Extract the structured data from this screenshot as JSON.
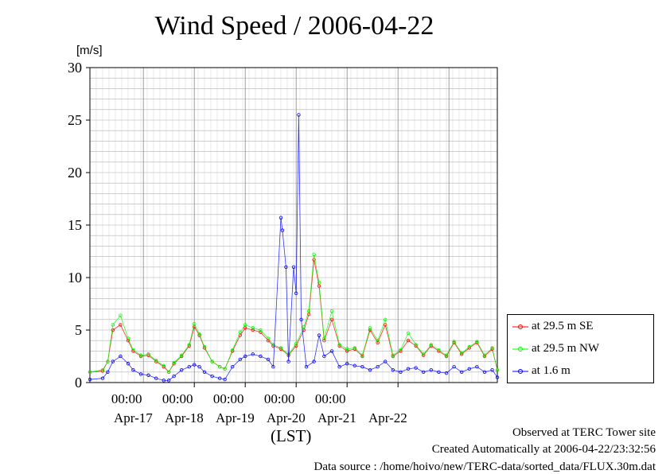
{
  "chart_data": {
    "type": "line",
    "title": "Wind Speed / 2006-04-22",
    "ylabel": "[m/s]",
    "xlabel": "(LST)",
    "ylim": [
      0,
      30
    ],
    "yticks": [
      0,
      5,
      10,
      15,
      20,
      25,
      30
    ],
    "xlim_days": [
      "2006-04-16 12:00",
      "2006-04-22 12:00"
    ],
    "time_tick_labels": [
      "00:00",
      "00:00",
      "00:00",
      "00:00",
      "00:00"
    ],
    "date_labels": [
      "Apr-17",
      "Apr-18",
      "Apr-19",
      "Apr-20",
      "Apr-21",
      "Apr-22"
    ],
    "grid": true,
    "legend_position": "right",
    "series": [
      {
        "name": "at 29.5 m SE",
        "color": "#ff0000",
        "points": [
          [
            0.0,
            1.0
          ],
          [
            0.25,
            1.1
          ],
          [
            0.35,
            2.0
          ],
          [
            0.45,
            5.0
          ],
          [
            0.6,
            5.5
          ],
          [
            0.75,
            4.0
          ],
          [
            0.85,
            3.0
          ],
          [
            1.0,
            2.5
          ],
          [
            1.15,
            2.6
          ],
          [
            1.3,
            2.0
          ],
          [
            1.45,
            1.5
          ],
          [
            1.55,
            1.0
          ],
          [
            1.65,
            1.8
          ],
          [
            1.8,
            2.5
          ],
          [
            1.95,
            3.5
          ],
          [
            2.05,
            5.3
          ],
          [
            2.15,
            4.5
          ],
          [
            2.25,
            3.3
          ],
          [
            2.4,
            2.0
          ],
          [
            2.55,
            1.5
          ],
          [
            2.65,
            1.3
          ],
          [
            2.8,
            3.0
          ],
          [
            2.95,
            4.5
          ],
          [
            3.05,
            5.2
          ],
          [
            3.2,
            5.0
          ],
          [
            3.35,
            4.8
          ],
          [
            3.5,
            4.0
          ],
          [
            3.6,
            3.5
          ],
          [
            3.75,
            3.2
          ],
          [
            3.9,
            2.6
          ],
          [
            4.05,
            3.5
          ],
          [
            4.2,
            5.0
          ],
          [
            4.3,
            6.5
          ],
          [
            4.4,
            11.7
          ],
          [
            4.5,
            9.2
          ],
          [
            4.6,
            4.0
          ],
          [
            4.75,
            6.0
          ],
          [
            4.9,
            3.5
          ],
          [
            5.05,
            3.0
          ],
          [
            5.2,
            3.2
          ],
          [
            5.35,
            2.5
          ],
          [
            5.5,
            5.0
          ],
          [
            5.65,
            3.8
          ],
          [
            5.8,
            5.5
          ],
          [
            5.95,
            2.5
          ],
          [
            6.1,
            3.0
          ],
          [
            6.25,
            4.0
          ],
          [
            6.4,
            3.5
          ],
          [
            6.55,
            2.6
          ],
          [
            6.7,
            3.5
          ],
          [
            6.85,
            3.0
          ],
          [
            7.0,
            2.5
          ],
          [
            7.15,
            3.8
          ],
          [
            7.3,
            2.7
          ],
          [
            7.45,
            3.3
          ],
          [
            7.6,
            3.8
          ],
          [
            7.75,
            2.5
          ],
          [
            7.9,
            3.2
          ],
          [
            8.0,
            1.2
          ]
        ]
      },
      {
        "name": "at 29.5 m NW",
        "color": "#00ff00",
        "points": [
          [
            0.0,
            1.0
          ],
          [
            0.25,
            1.2
          ],
          [
            0.35,
            2.0
          ],
          [
            0.45,
            5.5
          ],
          [
            0.6,
            6.4
          ],
          [
            0.75,
            4.2
          ],
          [
            0.85,
            3.1
          ],
          [
            1.0,
            2.6
          ],
          [
            1.15,
            2.7
          ],
          [
            1.3,
            2.1
          ],
          [
            1.45,
            1.6
          ],
          [
            1.55,
            1.0
          ],
          [
            1.65,
            1.9
          ],
          [
            1.8,
            2.6
          ],
          [
            1.95,
            3.6
          ],
          [
            2.05,
            5.6
          ],
          [
            2.15,
            4.6
          ],
          [
            2.25,
            3.4
          ],
          [
            2.4,
            2.0
          ],
          [
            2.55,
            1.5
          ],
          [
            2.65,
            1.3
          ],
          [
            2.8,
            3.1
          ],
          [
            2.95,
            4.8
          ],
          [
            3.05,
            5.5
          ],
          [
            3.2,
            5.2
          ],
          [
            3.35,
            5.0
          ],
          [
            3.5,
            4.2
          ],
          [
            3.6,
            3.6
          ],
          [
            3.75,
            3.3
          ],
          [
            3.9,
            2.7
          ],
          [
            4.05,
            3.7
          ],
          [
            4.2,
            5.3
          ],
          [
            4.3,
            6.8
          ],
          [
            4.4,
            12.2
          ],
          [
            4.5,
            9.5
          ],
          [
            4.6,
            4.2
          ],
          [
            4.75,
            6.8
          ],
          [
            4.9,
            3.6
          ],
          [
            5.05,
            3.2
          ],
          [
            5.2,
            3.3
          ],
          [
            5.35,
            2.6
          ],
          [
            5.5,
            5.2
          ],
          [
            5.65,
            4.0
          ],
          [
            5.8,
            6.0
          ],
          [
            5.95,
            2.6
          ],
          [
            6.1,
            3.1
          ],
          [
            6.25,
            4.7
          ],
          [
            6.4,
            3.6
          ],
          [
            6.55,
            2.7
          ],
          [
            6.7,
            3.6
          ],
          [
            6.85,
            3.1
          ],
          [
            7.0,
            2.6
          ],
          [
            7.15,
            3.9
          ],
          [
            7.3,
            2.8
          ],
          [
            7.45,
            3.4
          ],
          [
            7.6,
            3.9
          ],
          [
            7.75,
            2.6
          ],
          [
            7.9,
            3.3
          ],
          [
            8.0,
            1.2
          ]
        ]
      },
      {
        "name": "at 1.6 m",
        "color": "#0000ff",
        "points": [
          [
            0.0,
            0.3
          ],
          [
            0.25,
            0.4
          ],
          [
            0.35,
            1.0
          ],
          [
            0.45,
            2.0
          ],
          [
            0.6,
            2.5
          ],
          [
            0.75,
            1.8
          ],
          [
            0.85,
            1.2
          ],
          [
            1.0,
            0.8
          ],
          [
            1.15,
            0.7
          ],
          [
            1.3,
            0.4
          ],
          [
            1.45,
            0.2
          ],
          [
            1.55,
            0.2
          ],
          [
            1.65,
            0.6
          ],
          [
            1.8,
            1.2
          ],
          [
            1.95,
            1.5
          ],
          [
            2.05,
            1.7
          ],
          [
            2.15,
            1.5
          ],
          [
            2.25,
            1.0
          ],
          [
            2.4,
            0.6
          ],
          [
            2.55,
            0.4
          ],
          [
            2.65,
            0.3
          ],
          [
            2.8,
            1.5
          ],
          [
            2.95,
            2.2
          ],
          [
            3.05,
            2.5
          ],
          [
            3.2,
            2.7
          ],
          [
            3.35,
            2.5
          ],
          [
            3.5,
            2.2
          ],
          [
            3.6,
            1.5
          ],
          [
            3.75,
            15.7
          ],
          [
            3.78,
            14.5
          ],
          [
            3.85,
            11.0
          ],
          [
            3.9,
            2.0
          ],
          [
            4.0,
            11.0
          ],
          [
            4.05,
            8.5
          ],
          [
            4.1,
            25.5
          ],
          [
            4.15,
            6.0
          ],
          [
            4.25,
            1.5
          ],
          [
            4.4,
            2.0
          ],
          [
            4.5,
            4.5
          ],
          [
            4.6,
            2.5
          ],
          [
            4.75,
            3.0
          ],
          [
            4.9,
            1.5
          ],
          [
            5.05,
            1.8
          ],
          [
            5.2,
            1.6
          ],
          [
            5.35,
            1.5
          ],
          [
            5.5,
            1.2
          ],
          [
            5.65,
            1.5
          ],
          [
            5.8,
            2.0
          ],
          [
            5.95,
            1.2
          ],
          [
            6.1,
            1.0
          ],
          [
            6.25,
            1.3
          ],
          [
            6.4,
            1.4
          ],
          [
            6.55,
            1.0
          ],
          [
            6.7,
            1.2
          ],
          [
            6.85,
            1.0
          ],
          [
            7.0,
            0.9
          ],
          [
            7.15,
            1.5
          ],
          [
            7.3,
            1.0
          ],
          [
            7.45,
            1.3
          ],
          [
            7.6,
            1.5
          ],
          [
            7.75,
            1.0
          ],
          [
            7.9,
            1.2
          ],
          [
            8.0,
            0.5
          ]
        ]
      }
    ]
  },
  "footer": {
    "line1": "Observed at TERC Tower site",
    "line2": "Created Automatically at 2006-04-22/23:32:56",
    "line3": "Data source : /home/hoivo/new/TERC-data/sorted_data/FLUX.30m.dat"
  }
}
